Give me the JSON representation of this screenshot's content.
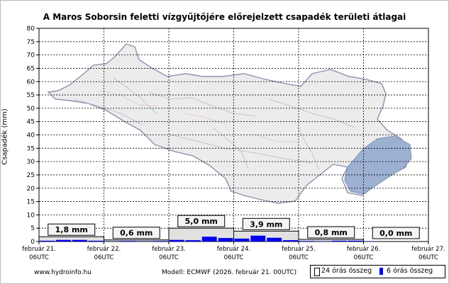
{
  "title": "A Maros Soborsin feletti vízgyűjtőjére előrejelzett csapadék területi átlagai",
  "footer": {
    "site": "www.hydroinfo.hu",
    "model": "Modell: ECMWF (2026. február 21. 00UTC)"
  },
  "legend": {
    "sum24": "24 órás összeg",
    "sum6": "6 órás összeg"
  },
  "colors": {
    "bar6": "#0000ee",
    "bar24_fill": "#c8c8c8",
    "basin_fill": "#e8e8e8",
    "basin_outline": "#8a8aa8",
    "highlight": "#8ea6cc"
  },
  "chart_data": {
    "type": "bar",
    "title": "A Maros Soborsin feletti vízgyűjtőjére előrejelzett csapadék területi átlagai",
    "ylabel": "Csapadék (mm)",
    "xlabel": "",
    "ylim": [
      0,
      80
    ],
    "yticks": [
      0,
      5,
      10,
      15,
      20,
      25,
      30,
      35,
      40,
      45,
      50,
      55,
      60,
      65,
      70,
      75,
      80
    ],
    "grid": true,
    "x_ticks": [
      {
        "date": "február 21.",
        "time": "06UTC"
      },
      {
        "date": "február 22.",
        "time": "06UTC"
      },
      {
        "date": "február 23.",
        "time": "06UTC"
      },
      {
        "date": "február 24.",
        "time": "06UTC"
      },
      {
        "date": "február 25.",
        "time": "06UTC"
      },
      {
        "date": "február 26.",
        "time": "06UTC"
      },
      {
        "date": "február 27.",
        "time": "06UTC"
      }
    ],
    "series": [
      {
        "name": "24 órás összeg",
        "values": [
          1.8,
          0.6,
          5.0,
          3.9,
          0.8,
          0.0
        ],
        "labels": [
          "1,8 mm",
          "0,6 mm",
          "5,0 mm",
          "3,9 mm",
          "0,8 mm",
          "0,0 mm"
        ]
      },
      {
        "name": "6 órás összeg",
        "values": [
          0.3,
          0.6,
          0.6,
          0.3,
          0.1,
          0.2,
          0.1,
          0.2,
          0.6,
          0.5,
          1.8,
          1.3,
          1.1,
          2.2,
          1.4,
          0.5,
          0.2,
          0.1,
          0.3,
          0.3,
          0.1,
          0.0,
          0.0,
          0.0
        ]
      }
    ],
    "legend_position": "bottom-right"
  }
}
